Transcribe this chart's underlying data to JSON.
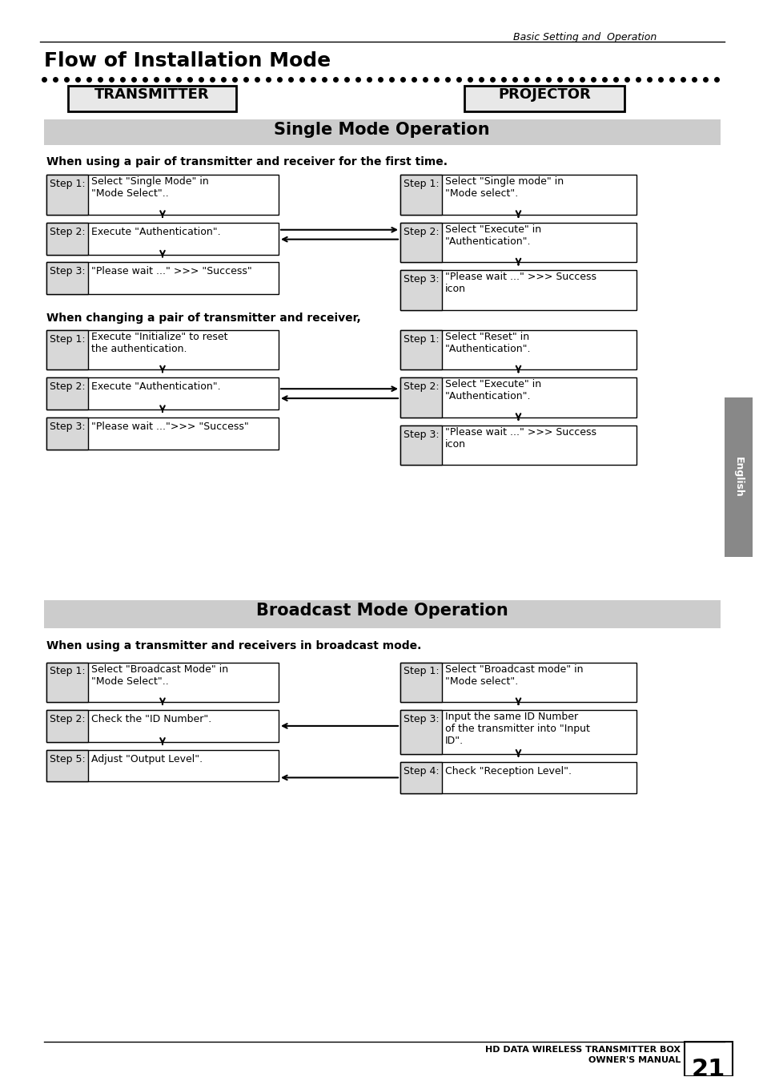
{
  "page_title": "Basic Setting and  Operation",
  "main_title": "Flow of Installation Mode",
  "header_left": "TRANSMITTER",
  "header_right": "PROJECTOR",
  "section1_title": "Single Mode Operation",
  "section1_sub1": "When using a pair of transmitter and receiver for the first time.",
  "section2_title": "Broadcast Mode Operation",
  "section2_sub": "When using a transmitter and receivers in broadcast mode.",
  "section_change_sub": "When changing a pair of transmitter and receiver,",
  "bg_color": "#ffffff",
  "box_fill": "#f0f0f0",
  "step_label_fill": "#d0d0d0",
  "section_bar_fill": "#cccccc",
  "english_tab_fill": "#888888",
  "footer_left": "HD DATA WIRELESS TRANSMITTER BOX",
  "footer_right": "OWNER'S MANUAL",
  "page_number": "21"
}
